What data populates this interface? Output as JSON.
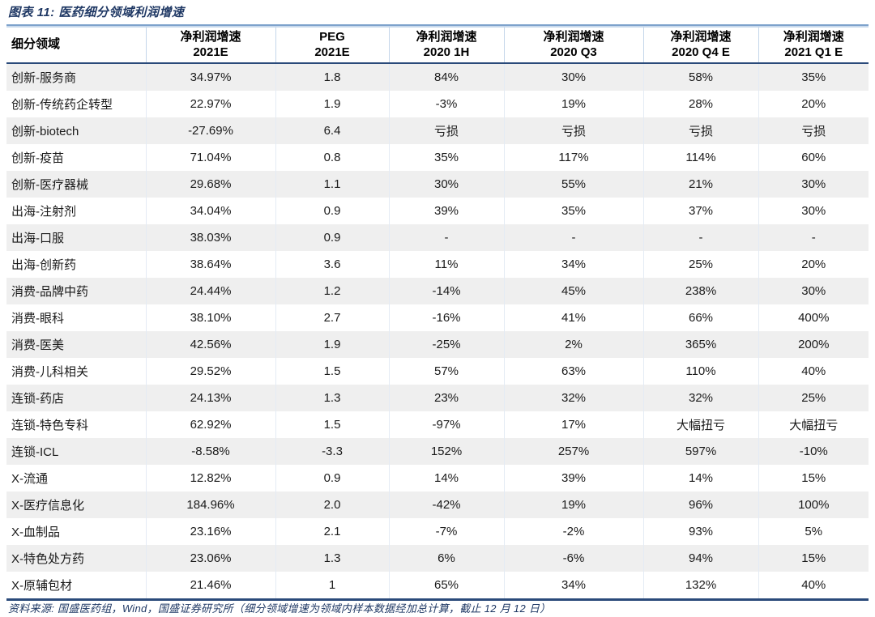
{
  "figure": {
    "title": "图表 11: 医药细分领域利润增速"
  },
  "table": {
    "columns": [
      {
        "line1": "细分领域",
        "line2": ""
      },
      {
        "line1": "净利润增速",
        "line2": "2021E"
      },
      {
        "line1": "PEG",
        "line2": "2021E"
      },
      {
        "line1": "净利润增速",
        "line2": "2020 1H"
      },
      {
        "line1": "净利润增速",
        "line2": "2020 Q3"
      },
      {
        "line1": "净利润增速",
        "line2": "2020 Q4 E"
      },
      {
        "line1": "净利润增速",
        "line2": "2021 Q1 E"
      }
    ],
    "rows": [
      [
        "创新-服务商",
        "34.97%",
        "1.8",
        "84%",
        "30%",
        "58%",
        "35%"
      ],
      [
        "创新-传统药企转型",
        "22.97%",
        "1.9",
        "-3%",
        "19%",
        "28%",
        "20%"
      ],
      [
        "创新-biotech",
        "-27.69%",
        "6.4",
        "亏损",
        "亏损",
        "亏损",
        "亏损"
      ],
      [
        "创新-疫苗",
        "71.04%",
        "0.8",
        "35%",
        "117%",
        "114%",
        "60%"
      ],
      [
        "创新-医疗器械",
        "29.68%",
        "1.1",
        "30%",
        "55%",
        "21%",
        "30%"
      ],
      [
        "出海-注射剂",
        "34.04%",
        "0.9",
        "39%",
        "35%",
        "37%",
        "30%"
      ],
      [
        "出海-口服",
        "38.03%",
        "0.9",
        "-",
        "-",
        "-",
        "-"
      ],
      [
        "出海-创新药",
        "38.64%",
        "3.6",
        "11%",
        "34%",
        "25%",
        "20%"
      ],
      [
        "消费-品牌中药",
        "24.44%",
        "1.2",
        "-14%",
        "45%",
        "238%",
        "30%"
      ],
      [
        "消费-眼科",
        "38.10%",
        "2.7",
        "-16%",
        "41%",
        "66%",
        "400%"
      ],
      [
        "消费-医美",
        "42.56%",
        "1.9",
        "-25%",
        "2%",
        "365%",
        "200%"
      ],
      [
        "消费-儿科相关",
        "29.52%",
        "1.5",
        "57%",
        "63%",
        "110%",
        "40%"
      ],
      [
        "连锁-药店",
        "24.13%",
        "1.3",
        "23%",
        "32%",
        "32%",
        "25%"
      ],
      [
        "连锁-特色专科",
        "62.92%",
        "1.5",
        "-97%",
        "17%",
        "大幅扭亏",
        "大幅扭亏"
      ],
      [
        "连锁-ICL",
        "-8.58%",
        "-3.3",
        "152%",
        "257%",
        "597%",
        "-10%"
      ],
      [
        "X-流通",
        "12.82%",
        "0.9",
        "14%",
        "39%",
        "14%",
        "15%"
      ],
      [
        "X-医疗信息化",
        "184.96%",
        "2.0",
        "-42%",
        "19%",
        "96%",
        "100%"
      ],
      [
        "X-血制品",
        "23.16%",
        "2.1",
        "-7%",
        "-2%",
        "93%",
        "5%"
      ],
      [
        "X-特色处方药",
        "23.06%",
        "1.3",
        "6%",
        "-6%",
        "94%",
        "15%"
      ],
      [
        "X-原辅包材",
        "21.46%",
        "1",
        "65%",
        "34%",
        "132%",
        "40%"
      ]
    ]
  },
  "footer": {
    "source": "资料来源: 国盛医药组，Wind，国盛证券研究所（细分领域增速为领域内样本数据经加总计算，截止 12 月 12 日）"
  },
  "colors": {
    "accent_navy": "#1f3864",
    "rule_dark": "#2a4a7a",
    "rule_light": "#7ea2cc",
    "row_alt": "#efefef",
    "separator": "#c4d6ea"
  }
}
